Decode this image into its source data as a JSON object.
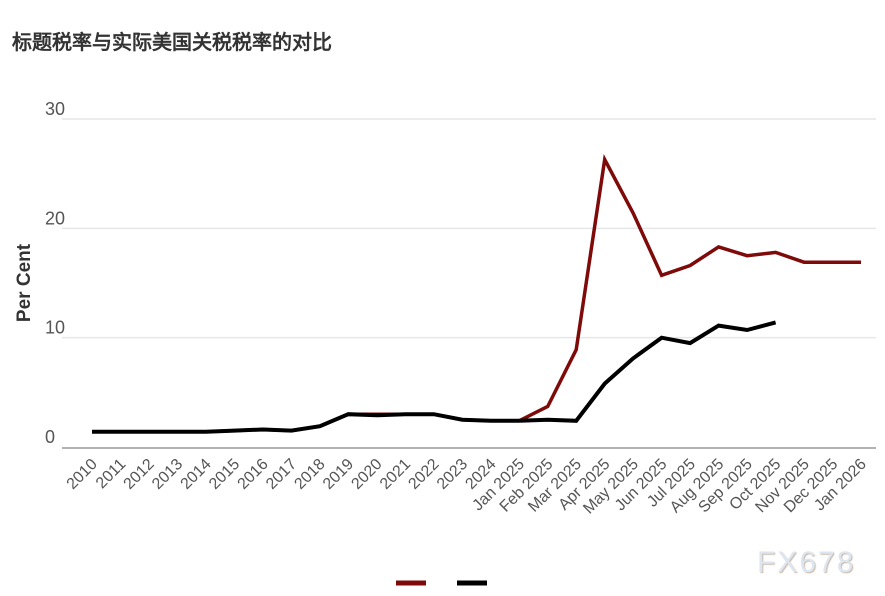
{
  "chart_data": {
    "type": "line",
    "title": "标题税率与实际美国关税税率的对比",
    "xlabel": "",
    "ylabel": "Per Cent",
    "ylim": [
      0,
      30
    ],
    "yticks": [
      "0",
      "10",
      "20",
      "30"
    ],
    "grid": true,
    "legend": "bottom-center",
    "categories": [
      "2010",
      "2011",
      "2012",
      "2013",
      "2014",
      "2015",
      "2016",
      "2017",
      "2018",
      "2019",
      "2020",
      "2021",
      "2022",
      "2023",
      "2024",
      "Jan 2025",
      "Feb 2025",
      "Mar 2025",
      "Apr 2025",
      "May 2025",
      "Jun 2025",
      "Jul 2025",
      "Aug 2025",
      "Sep 2025",
      "Oct 2025",
      "Nov 2025",
      "Dec 2025",
      "Jan 2026"
    ],
    "series": [
      {
        "color": "#7f0a0a",
        "values": [
          1.4,
          1.4,
          1.4,
          1.4,
          1.4,
          1.5,
          1.6,
          1.5,
          1.9,
          3.0,
          3.0,
          3.0,
          3.0,
          2.5,
          2.4,
          2.4,
          3.7,
          8.9,
          26.3,
          21.4,
          15.7,
          16.6,
          18.3,
          17.5,
          17.8,
          16.9,
          16.9,
          16.9
        ]
      },
      {
        "color": "#000000",
        "values": [
          1.4,
          1.4,
          1.4,
          1.4,
          1.4,
          1.5,
          1.6,
          1.5,
          1.9,
          3.0,
          2.9,
          3.0,
          3.0,
          2.5,
          2.4,
          2.4,
          2.5,
          2.4,
          5.8,
          8.1,
          10.0,
          9.5,
          11.1,
          10.7,
          11.4,
          null,
          null,
          null
        ]
      }
    ]
  },
  "watermark": "FX678"
}
